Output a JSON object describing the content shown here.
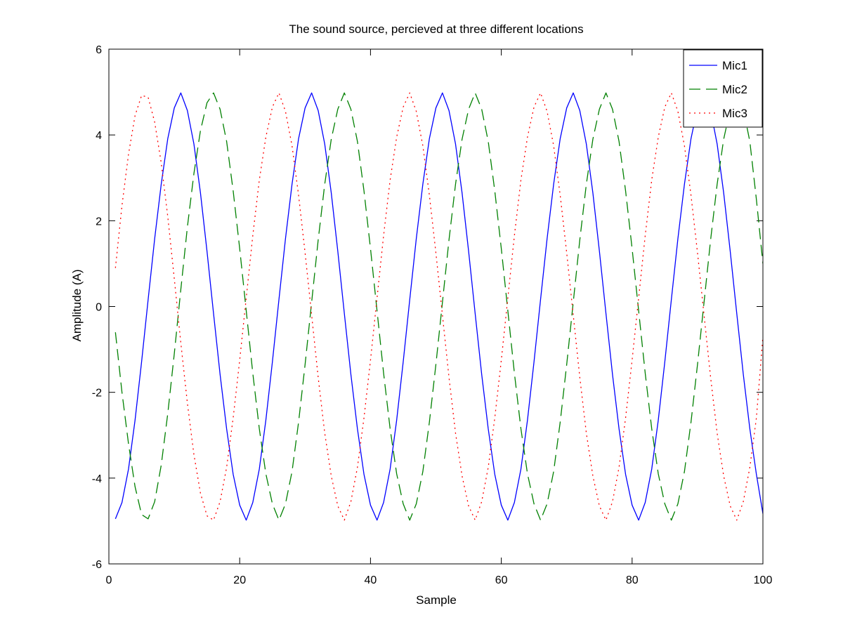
{
  "chart_data": {
    "type": "line",
    "title": "The sound source, percieved at three different locations",
    "xlabel": "Sample",
    "ylabel": "Amplitude (A)",
    "xlim": [
      0,
      100
    ],
    "ylim": [
      -6,
      6
    ],
    "xticks": [
      0,
      20,
      40,
      60,
      80,
      100
    ],
    "yticks": [
      -6,
      -4,
      -2,
      0,
      2,
      4,
      6
    ],
    "grid": false,
    "legend_position": "top-right",
    "x": [
      1,
      2,
      3,
      4,
      5,
      6,
      7,
      8,
      9,
      10,
      11,
      12,
      13,
      14,
      15,
      16,
      17,
      18,
      19,
      20,
      21,
      22,
      23,
      24,
      25,
      26,
      27,
      28,
      29,
      30,
      31,
      32,
      33,
      34,
      35,
      36,
      37,
      38,
      39,
      40,
      41,
      42,
      43,
      44,
      45,
      46,
      47,
      48,
      49,
      50,
      51,
      52,
      53,
      54,
      55,
      56,
      57,
      58,
      59,
      60,
      61,
      62,
      63,
      64,
      65,
      66,
      67,
      68,
      69,
      70,
      71,
      72,
      73,
      74,
      75,
      76,
      77,
      78,
      79,
      80,
      81,
      82,
      83,
      84,
      85,
      86,
      87,
      88,
      89,
      90,
      91,
      92,
      93,
      94,
      95,
      96,
      97,
      98,
      99,
      100
    ],
    "series": [
      {
        "name": "Mic1",
        "color": "#0000ff",
        "dash": "solid",
        "values": [
          -4.95,
          -4.57,
          -3.79,
          -2.65,
          -1.29,
          0.16,
          1.58,
          2.85,
          3.91,
          4.63,
          4.98,
          4.57,
          3.79,
          2.65,
          1.29,
          -0.16,
          -1.58,
          -2.85,
          -3.91,
          -4.63,
          -4.98,
          -4.57,
          -3.79,
          -2.65,
          -1.29,
          0.16,
          1.58,
          2.85,
          3.91,
          4.63,
          4.98,
          4.57,
          3.79,
          2.65,
          1.29,
          -0.16,
          -1.58,
          -2.85,
          -3.91,
          -4.63,
          -4.98,
          -4.57,
          -3.79,
          -2.65,
          -1.29,
          0.16,
          1.58,
          2.85,
          3.91,
          4.63,
          4.98,
          4.57,
          3.79,
          2.65,
          1.29,
          -0.16,
          -1.58,
          -2.85,
          -3.91,
          -4.63,
          -4.98,
          -4.57,
          -3.79,
          -2.65,
          -1.29,
          0.16,
          1.58,
          2.85,
          3.91,
          4.63,
          4.98,
          4.57,
          3.79,
          2.65,
          1.29,
          -0.16,
          -1.58,
          -2.85,
          -3.91,
          -4.63,
          -4.98,
          -4.57,
          -3.79,
          -2.65,
          -1.29,
          0.16,
          1.58,
          2.85,
          3.91,
          4.63,
          4.98,
          4.57,
          3.79,
          2.65,
          1.29,
          -0.16,
          -1.58,
          -2.85,
          -3.91,
          -4.83
        ]
      },
      {
        "name": "Mic2",
        "color": "#008000",
        "dash": "dashed",
        "values": [
          -0.6,
          -2.0,
          -3.2,
          -4.2,
          -4.85,
          -4.95,
          -4.55,
          -3.7,
          -2.5,
          -1.1,
          0.4,
          1.85,
          3.1,
          4.1,
          4.75,
          4.98,
          4.6,
          3.85,
          2.7,
          1.35,
          -0.1,
          -1.55,
          -2.85,
          -3.9,
          -4.6,
          -4.98,
          -4.6,
          -3.85,
          -2.7,
          -1.35,
          0.1,
          1.55,
          2.85,
          3.9,
          4.6,
          4.98,
          4.6,
          3.85,
          2.7,
          1.35,
          -0.1,
          -1.55,
          -2.85,
          -3.9,
          -4.6,
          -4.98,
          -4.6,
          -3.85,
          -2.7,
          -1.35,
          0.1,
          1.55,
          2.85,
          3.9,
          4.6,
          4.98,
          4.6,
          3.85,
          2.7,
          1.35,
          -0.1,
          -1.55,
          -2.85,
          -3.9,
          -4.6,
          -4.98,
          -4.6,
          -3.85,
          -2.7,
          -1.35,
          0.1,
          1.55,
          2.85,
          3.9,
          4.6,
          4.98,
          4.6,
          3.85,
          2.7,
          1.35,
          -0.1,
          -1.55,
          -2.85,
          -3.9,
          -4.6,
          -4.98,
          -4.6,
          -3.85,
          -2.7,
          -1.35,
          0.1,
          1.55,
          2.85,
          3.9,
          4.6,
          4.98,
          4.6,
          3.85,
          2.5,
          1.0
        ]
      },
      {
        "name": "Mic3",
        "color": "#ff0000",
        "dash": "dotted",
        "values": [
          0.9,
          2.35,
          3.55,
          4.45,
          4.92,
          4.88,
          4.3,
          3.35,
          2.1,
          0.65,
          -0.85,
          -2.25,
          -3.45,
          -4.35,
          -4.88,
          -4.98,
          -4.55,
          -3.75,
          -2.6,
          -1.25,
          0.2,
          1.65,
          2.95,
          3.95,
          4.65,
          4.98,
          4.55,
          3.75,
          2.6,
          1.25,
          -0.2,
          -1.65,
          -2.95,
          -3.95,
          -4.65,
          -4.98,
          -4.55,
          -3.75,
          -2.6,
          -1.25,
          0.2,
          1.65,
          2.95,
          3.95,
          4.65,
          4.98,
          4.55,
          3.75,
          2.6,
          1.25,
          -0.2,
          -1.65,
          -2.95,
          -3.95,
          -4.65,
          -4.98,
          -4.55,
          -3.75,
          -2.6,
          -1.25,
          0.2,
          1.65,
          2.95,
          3.95,
          4.65,
          4.98,
          4.55,
          3.75,
          2.6,
          1.25,
          -0.2,
          -1.65,
          -2.95,
          -3.95,
          -4.65,
          -4.98,
          -4.55,
          -3.75,
          -2.6,
          -1.25,
          0.2,
          1.65,
          2.95,
          3.95,
          4.65,
          4.98,
          4.55,
          3.75,
          2.6,
          1.25,
          -0.2,
          -1.65,
          -2.95,
          -3.95,
          -4.65,
          -4.98,
          -4.55,
          -3.75,
          -2.6,
          -0.7
        ]
      }
    ]
  }
}
